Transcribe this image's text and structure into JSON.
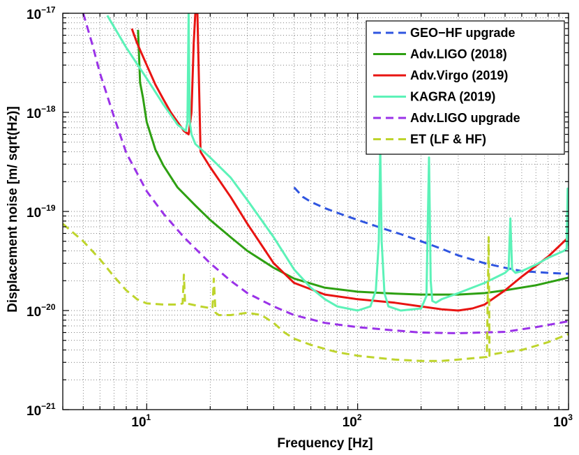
{
  "chart_data": {
    "type": "line",
    "xscale": "log",
    "yscale": "log",
    "xlim": [
      4,
      1000
    ],
    "ylim": [
      1e-21,
      1e-17
    ],
    "xlabel": "Frequency [Hz]",
    "ylabel": "Displacement noise [m/ sqrt(Hz)]",
    "grid": "dotted, major and minor",
    "legend_position": "top-right",
    "x_ticks": [
      {
        "value": 10,
        "base": "10",
        "exp": "1"
      },
      {
        "value": 100,
        "base": "10",
        "exp": "2"
      },
      {
        "value": 1000,
        "base": "10",
        "exp": "3"
      }
    ],
    "y_ticks": [
      {
        "value": 1e-17,
        "base": "10",
        "exp": "−17"
      },
      {
        "value": 1e-18,
        "base": "10",
        "exp": "−18"
      },
      {
        "value": 1e-19,
        "base": "10",
        "exp": "−19"
      },
      {
        "value": 1e-20,
        "base": "10",
        "exp": "−20"
      },
      {
        "value": 1e-21,
        "base": "10",
        "exp": "−21"
      }
    ],
    "series": [
      {
        "name": "GEO−HF upgrade",
        "color": "#2f55e0",
        "style": "dashed",
        "x": [
          50,
          55,
          60,
          70,
          80,
          100,
          130,
          160,
          200,
          250,
          300,
          400,
          500,
          600,
          800,
          1000
        ],
        "y": [
          1.75e-19,
          1.4e-19,
          1.25e-19,
          1.08e-19,
          9.7e-20,
          8.2e-20,
          6.8e-20,
          5.9e-20,
          5e-20,
          4.2e-20,
          3.6e-20,
          3e-20,
          2.7e-20,
          2.5e-20,
          2.4e-20,
          2.35e-20
        ]
      },
      {
        "name": "Adv.LIGO (2018)",
        "color": "#2ea012",
        "style": "solid",
        "x": [
          9.1,
          9.3,
          9.6,
          10,
          11,
          12,
          14,
          17,
          20,
          25,
          30,
          40,
          50,
          70,
          100,
          150,
          200,
          300,
          400,
          500,
          700,
          1000
        ],
        "y": [
          6.8e-18,
          2e-18,
          1.4e-18,
          8e-19,
          4.2e-19,
          2.9e-19,
          1.75e-19,
          1.15e-19,
          8.2e-20,
          5.5e-20,
          4e-20,
          2.7e-20,
          2.1e-20,
          1.7e-20,
          1.55e-20,
          1.48e-20,
          1.45e-20,
          1.45e-20,
          1.5e-20,
          1.6e-20,
          1.8e-20,
          2.15e-20
        ]
      },
      {
        "name": "Adv.Virgo (2019)",
        "color": "#e81412",
        "style": "solid",
        "x": [
          8.5,
          9,
          10,
          11,
          12,
          13,
          14,
          15,
          15.8,
          16.3,
          16.7,
          17,
          17.4,
          18,
          20,
          25,
          30,
          40,
          50,
          70,
          100,
          150,
          200,
          250,
          300,
          350,
          400,
          500,
          600,
          800,
          1000
        ],
        "y": [
          7e-18,
          5e-18,
          3e-18,
          1.9e-18,
          1.35e-18,
          1e-18,
          8e-19,
          6.5e-19,
          6e-19,
          1e-18,
          5e-18,
          1e-17,
          1e-17,
          4e-19,
          2.8e-19,
          1.4e-19,
          7.5e-20,
          3e-20,
          1.9e-20,
          1.45e-20,
          1.3e-20,
          1.2e-20,
          1.1e-20,
          1.03e-20,
          1e-20,
          1.05e-20,
          1.15e-20,
          1.6e-20,
          2.2e-20,
          3.5e-20,
          5.5e-20
        ]
      },
      {
        "name": "KAGRA (2019)",
        "color": "#5cf2b8",
        "style": "solid",
        "x": [
          6.5,
          8,
          10,
          12,
          14,
          15.3,
          15.6,
          15.8,
          16,
          16.3,
          17,
          20,
          25,
          30,
          40,
          50,
          60,
          70,
          80,
          100,
          115,
          122,
          126,
          128,
          130,
          134,
          140,
          160,
          200,
          212,
          218,
          222,
          226,
          235,
          250,
          300,
          400,
          500,
          520,
          530,
          540,
          560,
          600,
          700,
          800,
          950,
          980,
          990,
          1000
        ],
        "y": [
          9.5e-18,
          4.5e-18,
          2.2e-18,
          1.2e-18,
          7.5e-19,
          6.5e-19,
          8e-19,
          1e-17,
          8e-19,
          6e-19,
          4.8e-19,
          3.5e-19,
          2.2e-19,
          1.3e-19,
          5.5e-20,
          2.6e-20,
          1.7e-20,
          1.3e-20,
          1.1e-20,
          1e-20,
          1.1e-20,
          1.6e-20,
          5e-20,
          4.5e-19,
          5e-20,
          1.5e-20,
          1.1e-20,
          1e-20,
          1.05e-20,
          1.4e-20,
          3.5e-19,
          2e-20,
          1.25e-20,
          1.2e-20,
          1.3e-20,
          1.5e-20,
          1.9e-20,
          2.4e-20,
          2.6e-20,
          8.5e-20,
          2.6e-20,
          2.4e-20,
          2.5e-20,
          2.9e-20,
          3.4e-20,
          4e-20,
          4.2e-20,
          1.7e-19,
          4.5e-20
        ]
      },
      {
        "name": "Adv.LIGO upgrade",
        "color": "#9a32e8",
        "style": "dashed",
        "x": [
          5,
          5.5,
          6,
          7,
          8,
          10,
          12,
          15,
          20,
          25,
          30,
          40,
          50,
          70,
          100,
          150,
          200,
          300,
          500,
          700,
          1000
        ],
        "y": [
          1e-17,
          5e-18,
          2.5e-18,
          9e-19,
          3.9e-19,
          1.6e-19,
          9.5e-20,
          5.5e-20,
          3e-20,
          2e-20,
          1.5e-20,
          1.1e-20,
          9e-21,
          7.5e-21,
          6.8e-21,
          6.3e-21,
          6e-21,
          5.9e-21,
          6.1e-21,
          6.8e-21,
          7.8e-21
        ]
      },
      {
        "name": "ET (LF & HF)",
        "color": "#bed42c",
        "style": "dashed",
        "x": [
          4,
          5,
          6,
          7,
          8,
          9,
          10,
          12,
          14,
          14.8,
          15,
          15.2,
          16,
          18,
          20.5,
          20.8,
          21.2,
          22,
          25,
          30,
          35,
          40,
          45,
          50,
          60,
          70,
          80,
          100,
          130,
          150,
          200,
          250,
          300,
          350,
          410,
          418,
          422,
          430,
          500,
          600,
          700,
          800,
          1000
        ],
        "y": [
          7.5e-20,
          5e-20,
          3.3e-20,
          2.2e-20,
          1.6e-20,
          1.3e-20,
          1.18e-20,
          1.15e-20,
          1.15e-20,
          1.18e-20,
          2.3e-20,
          1.18e-20,
          1.16e-20,
          1.1e-20,
          1.05e-20,
          2.1e-20,
          9.5e-21,
          9e-21,
          9e-21,
          9.5e-21,
          9e-21,
          7.5e-21,
          6e-21,
          5.2e-21,
          4.5e-21,
          4.1e-21,
          3.8e-21,
          3.5e-21,
          3.3e-21,
          3.2e-21,
          3.1e-21,
          3.1e-21,
          3.2e-21,
          3.3e-21,
          3.4e-21,
          5.5e-20,
          3.5e-21,
          3.6e-21,
          3.8e-21,
          4e-21,
          4.4e-21,
          4.8e-21,
          5.8e-21
        ]
      }
    ]
  }
}
